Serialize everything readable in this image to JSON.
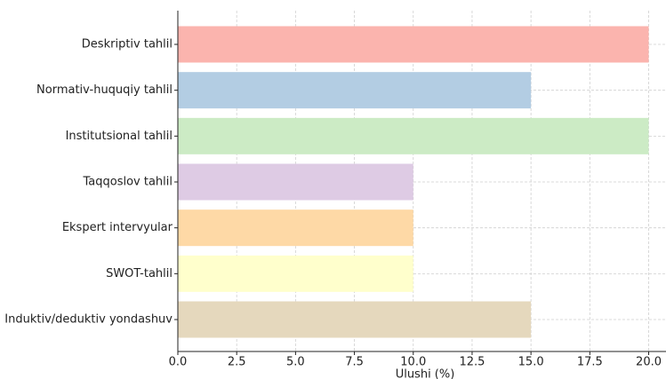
{
  "chart_data": {
    "type": "barh",
    "xlabel": "Ulushi (%)",
    "categories": [
      "Deskriptiv tahlil",
      "Normativ-huquqiy tahlil",
      "Institutsional tahlil",
      "Taqqoslov tahlil",
      "Ekspert intervyular",
      "SWOT-tahlil",
      "Induktiv/deduktiv yondashuv"
    ],
    "values": [
      20,
      15,
      20,
      10,
      10,
      10,
      15
    ],
    "colors": [
      "#fbb4ae",
      "#b3cde3",
      "#ccebc5",
      "#decbe4",
      "#fed9a6",
      "#ffffcc",
      "#e5d8bd"
    ],
    "xlim": [
      0,
      21
    ],
    "xticks": [
      {
        "value": 0,
        "label": "0.0"
      },
      2.5,
      {
        "value": 5,
        "label": "5.0"
      },
      7.5,
      {
        "value": 10,
        "label": "10.0"
      },
      12.5,
      {
        "value": 15,
        "label": "15.0"
      },
      17.5,
      {
        "value": 20,
        "label": "20.0"
      }
    ],
    "grid": true
  }
}
